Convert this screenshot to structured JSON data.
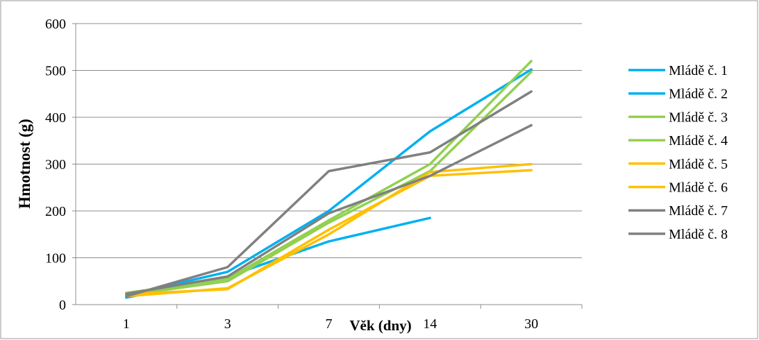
{
  "chart_data": {
    "type": "line",
    "title": "",
    "xlabel": "Věk (dny)",
    "ylabel": "Hmotnost (g)",
    "categories": [
      "1",
      "3",
      "7",
      "14",
      "30"
    ],
    "yticks": [
      "0",
      "100",
      "200",
      "300",
      "400",
      "500",
      "600"
    ],
    "ylim": [
      0,
      600
    ],
    "grid": "horizontal",
    "legend_position": "right",
    "series": [
      {
        "name": "Mládě č. 1",
        "color": "#00B0F0",
        "values": [
          15,
          60,
          135,
          185,
          null
        ]
      },
      {
        "name": "Mládě č. 2",
        "color": "#00B0F0",
        "values": [
          20,
          70,
          200,
          370,
          502
        ]
      },
      {
        "name": "Mládě č. 3",
        "color": "#92D050",
        "values": [
          25,
          55,
          180,
          300,
          520
        ]
      },
      {
        "name": "Mládě č. 4",
        "color": "#92D050",
        "values": [
          20,
          50,
          175,
          285,
          497
        ]
      },
      {
        "name": "Mládě č. 5",
        "color": "#FFC000",
        "values": [
          18,
          35,
          150,
          283,
          300
        ]
      },
      {
        "name": "Mládě č. 6",
        "color": "#FFC000",
        "values": [
          22,
          33,
          160,
          275,
          287
        ]
      },
      {
        "name": "Mládě č. 7",
        "color": "#808080",
        "values": [
          18,
          80,
          285,
          325,
          455
        ]
      },
      {
        "name": "Mládě č. 8",
        "color": "#808080",
        "values": [
          23,
          60,
          195,
          275,
          383
        ]
      }
    ]
  }
}
